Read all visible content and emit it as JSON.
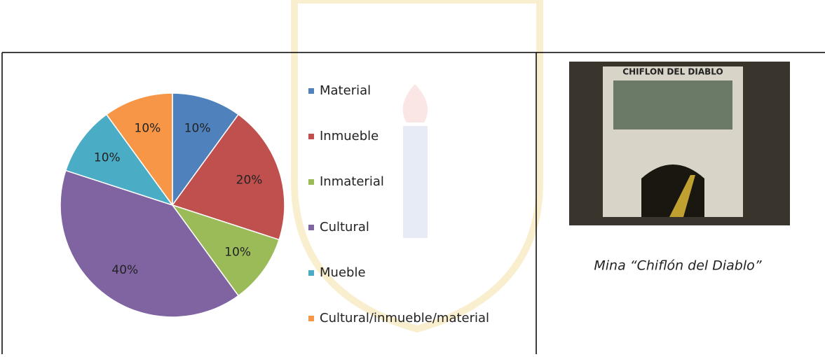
{
  "chart_data": {
    "type": "pie",
    "categories": [
      "Material",
      "Inmueble",
      "Inmaterial",
      "Cultural",
      "Mueble",
      "Cultural/inmueble/material"
    ],
    "values": [
      10,
      20,
      10,
      40,
      10,
      10
    ],
    "value_labels": [
      "10%",
      "20%",
      "10%",
      "40%",
      "10%",
      "10%"
    ],
    "colors": [
      "#4f81bd",
      "#c0504d",
      "#9bbb59",
      "#8064a2",
      "#4bacc6",
      "#f79646"
    ]
  },
  "photo_sign": "CHIFLON DEL DIABLO",
  "caption": "Mina “Chiflón del Diablo”"
}
